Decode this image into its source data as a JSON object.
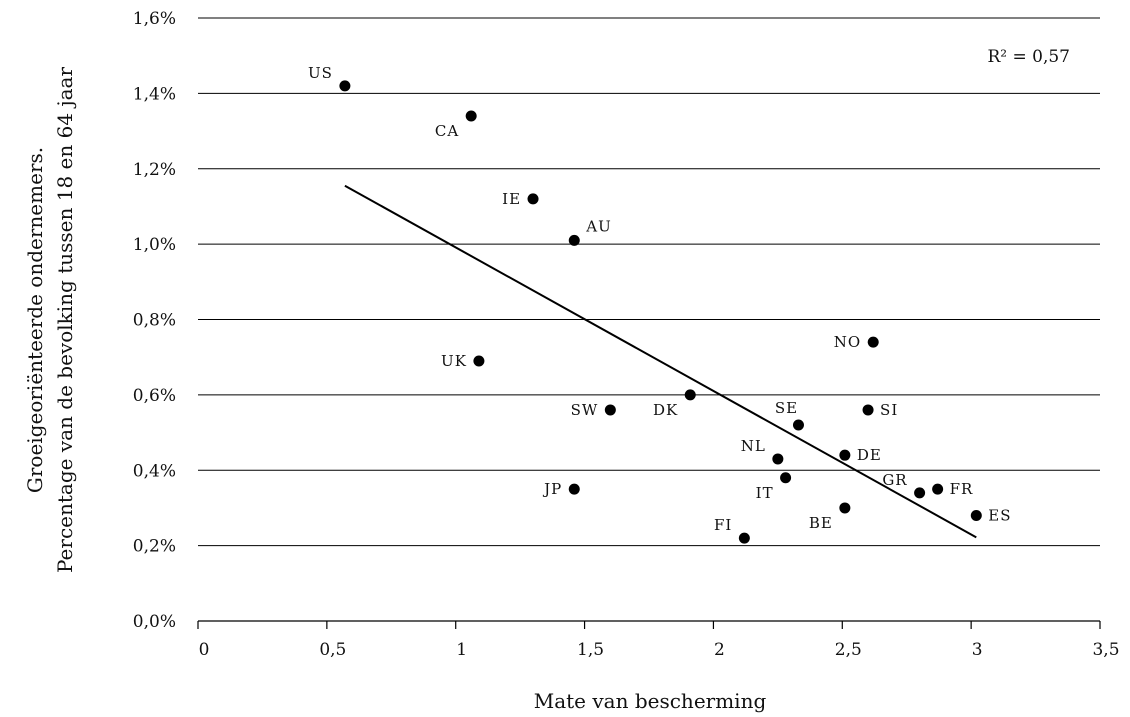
{
  "chart_data": {
    "type": "scatter",
    "xlabel": "Mate van bescherming",
    "ylabel_lines": [
      "Groeigeoriënteerde ondernemers.",
      "Percentage van de bevolking tussen 18 en 64 jaar"
    ],
    "xlim": [
      0,
      3.5
    ],
    "ylim": [
      0,
      1.6
    ],
    "grid": "horizontal",
    "x_ticks": [
      "0",
      "0,5",
      "1",
      "1,5",
      "2",
      "2,5",
      "3",
      "3,5"
    ],
    "y_ticks": [
      "0,0%",
      "0,2%",
      "0,4%",
      "0,6%",
      "0,8%",
      "1,0%",
      "1,2%",
      "1,4%",
      "1,6%"
    ],
    "annotation": "R² = 0,57",
    "trendline": {
      "x": [
        0.57,
        3.02
      ],
      "y": [
        1.155,
        0.222
      ]
    },
    "points": [
      {
        "label": "US",
        "x": 0.57,
        "y": 1.42,
        "label_pos": "left-up"
      },
      {
        "label": "CA",
        "x": 1.06,
        "y": 1.34,
        "label_pos": "left-down"
      },
      {
        "label": "IE",
        "x": 1.3,
        "y": 1.12,
        "label_pos": "left"
      },
      {
        "label": "AU",
        "x": 1.46,
        "y": 1.01,
        "label_pos": "right-up"
      },
      {
        "label": "UK",
        "x": 1.09,
        "y": 0.69,
        "label_pos": "left"
      },
      {
        "label": "SW",
        "x": 1.6,
        "y": 0.56,
        "label_pos": "left"
      },
      {
        "label": "DK",
        "x": 1.91,
        "y": 0.6,
        "label_pos": "left-down"
      },
      {
        "label": "JP",
        "x": 1.46,
        "y": 0.35,
        "label_pos": "left"
      },
      {
        "label": "FI",
        "x": 2.12,
        "y": 0.22,
        "label_pos": "left-up"
      },
      {
        "label": "NL",
        "x": 2.25,
        "y": 0.43,
        "label_pos": "left-up"
      },
      {
        "label": "IT",
        "x": 2.28,
        "y": 0.38,
        "label_pos": "left-down"
      },
      {
        "label": "SE",
        "x": 2.33,
        "y": 0.52,
        "label_pos": "up"
      },
      {
        "label": "BE",
        "x": 2.51,
        "y": 0.3,
        "label_pos": "left-down"
      },
      {
        "label": "DE",
        "x": 2.51,
        "y": 0.44,
        "label_pos": "right"
      },
      {
        "label": "NO",
        "x": 2.62,
        "y": 0.74,
        "label_pos": "left"
      },
      {
        "label": "SI",
        "x": 2.6,
        "y": 0.56,
        "label_pos": "right"
      },
      {
        "label": "GR",
        "x": 2.8,
        "y": 0.34,
        "label_pos": "left-up"
      },
      {
        "label": "FR",
        "x": 2.87,
        "y": 0.35,
        "label_pos": "right"
      },
      {
        "label": "ES",
        "x": 3.02,
        "y": 0.28,
        "label_pos": "right"
      }
    ]
  }
}
